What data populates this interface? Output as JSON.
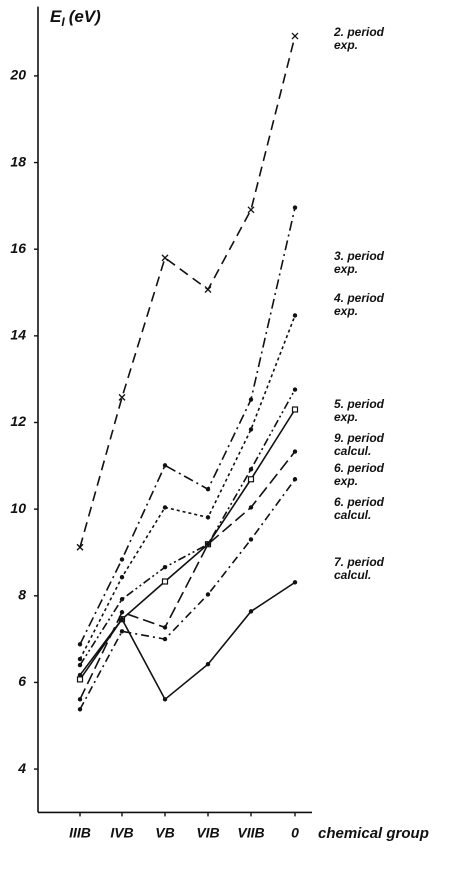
{
  "chart_data": {
    "type": "line",
    "y_label": {
      "main": "E",
      "sub": "I",
      "unit": "(eV)"
    },
    "x_label": "chemical group",
    "categories": [
      "IIIB",
      "IVB",
      "VB",
      "VIB",
      "VIIB",
      "0"
    ],
    "ylim": [
      3,
      21.6
    ],
    "yticks": [
      4,
      6,
      8,
      10,
      12,
      14,
      16,
      18,
      20
    ],
    "grid": false,
    "series": [
      {
        "name": "2. period exp.",
        "color": "#111111",
        "dash": "10,6",
        "marker": "x",
        "values": [
          9.12,
          12.58,
          15.8,
          15.07,
          16.91,
          20.92
        ]
      },
      {
        "name": "3. period exp.",
        "color": "#111111",
        "dash": "10,4,2,4",
        "marker": "dot",
        "values": [
          6.88,
          8.84,
          11.01,
          10.46,
          12.53,
          16.96
        ]
      },
      {
        "name": "4. period exp.",
        "color": "#111111",
        "dash": "3,3",
        "marker": "dot",
        "values": [
          6.54,
          8.43,
          10.04,
          9.81,
          11.84,
          14.47
        ]
      },
      {
        "name": "5. period exp.",
        "color": "#111111",
        "dash": "8,3,2,3,2,3",
        "marker": "dot",
        "values": [
          6.4,
          7.92,
          8.66,
          9.19,
          10.92,
          12.76
        ]
      },
      {
        "name": "9. period calcul.",
        "color": "#111111",
        "dash": "none",
        "marker": "square",
        "values": [
          6.07,
          7.46,
          8.33,
          9.19,
          10.69,
          12.3
        ]
      },
      {
        "name": "6. period exp.",
        "color": "#111111",
        "dash": "12,5",
        "marker": "dot",
        "values": [
          5.61,
          7.62,
          7.27,
          9.19,
          10.04,
          11.33
        ]
      },
      {
        "name": "6. period calcul.",
        "color": "#111111",
        "dash": "8,4,2,4",
        "marker": "dot",
        "values": [
          5.38,
          7.18,
          7.0,
          8.03,
          9.3,
          10.69
        ]
      },
      {
        "name": "7. period calcul.",
        "color": "#111111",
        "dash": "none",
        "marker": "dot",
        "values": [
          6.17,
          7.46,
          5.61,
          6.42,
          7.64,
          8.31
        ]
      }
    ]
  }
}
